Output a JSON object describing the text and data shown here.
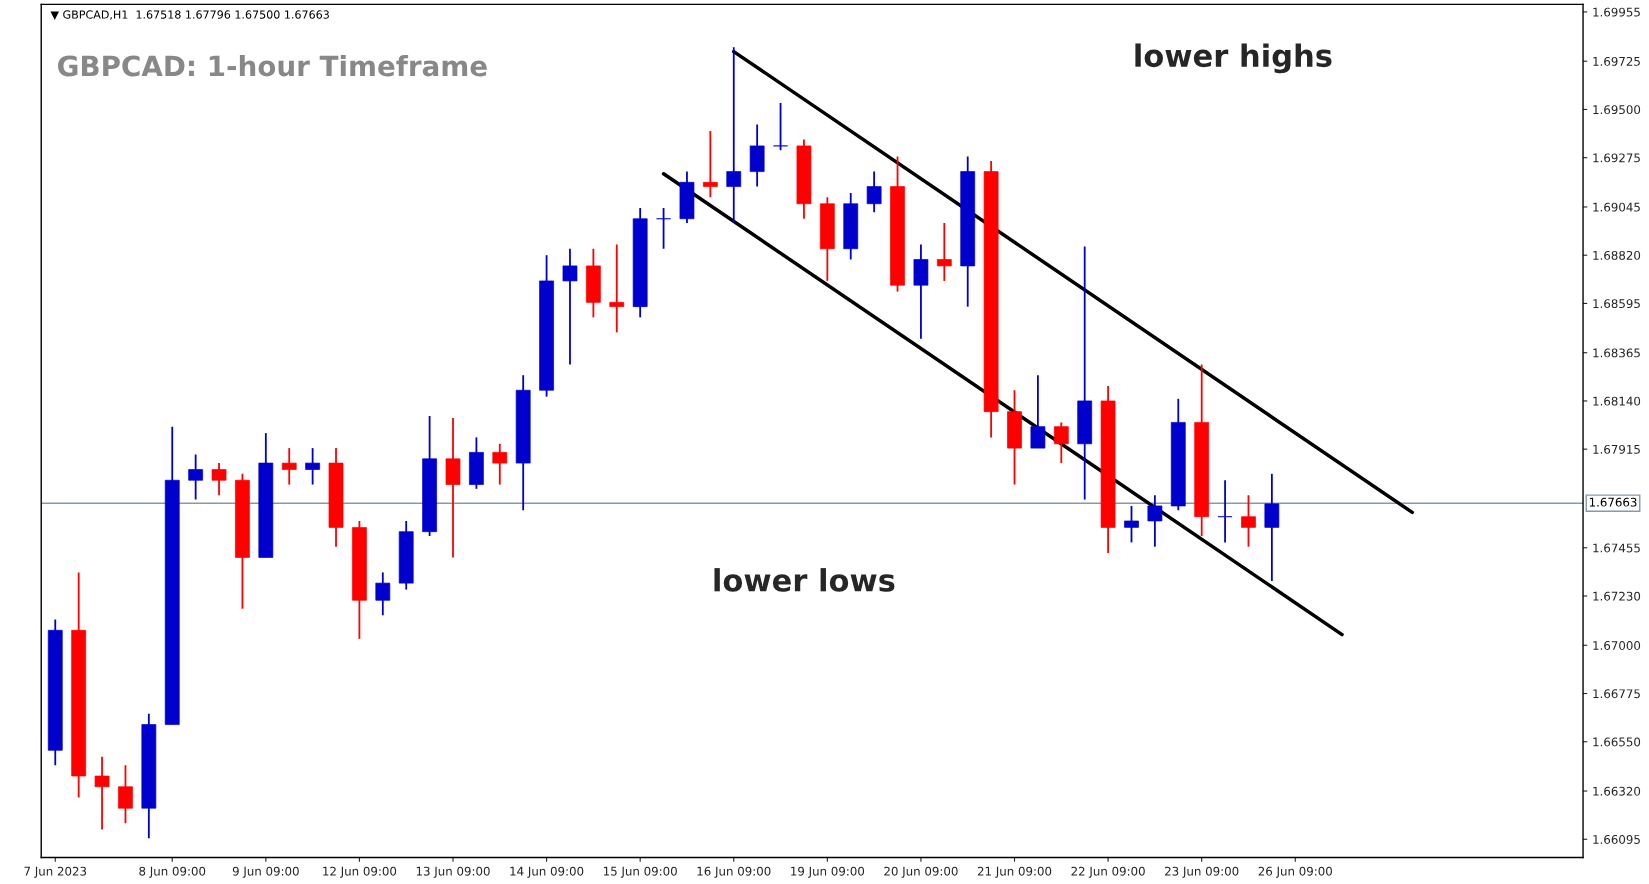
{
  "chart_data": {
    "type": "candlestick",
    "title": "GBPCAD: 1-hour Timeframe",
    "subtitle": "▼ GBPCAD,H1  1.67518 1.67796 1.67500 1.67663",
    "categories": [
      "7 Jun 2023",
      null,
      null,
      null,
      null,
      "8 Jun 09:00",
      null,
      null,
      null,
      "9 Jun 09:00",
      null,
      null,
      null,
      "12 Jun 09:00",
      null,
      null,
      null,
      "13 Jun 09:00",
      null,
      null,
      null,
      "14 Jun 09:00",
      null,
      null,
      null,
      "15 Jun 09:00",
      null,
      null,
      null,
      "16 Jun 09:00",
      null,
      null,
      null,
      "19 Jun 09:00",
      null,
      null,
      null,
      "20 Jun 09:00",
      null,
      null,
      null,
      "21 Jun 09:00",
      null,
      null,
      null,
      "22 Jun 09:00",
      null,
      null,
      null,
      "23 Jun 09:00",
      null,
      null,
      null,
      "26 Jun 09:00",
      null,
      null,
      null,
      null,
      null,
      null,
      null,
      null,
      null,
      null,
      null,
      null
    ],
    "ohlc": [
      [
        1.6651,
        1.6712,
        1.6644,
        1.6707
      ],
      [
        1.6707,
        1.6734,
        1.6629,
        1.6639
      ],
      [
        1.6639,
        1.6648,
        1.6614,
        1.6634
      ],
      [
        1.6634,
        1.6644,
        1.6617,
        1.6624
      ],
      [
        1.6624,
        1.6668,
        1.661,
        1.6663
      ],
      [
        1.6663,
        1.6802,
        1.6663,
        1.6777
      ],
      [
        1.6777,
        1.6789,
        1.6768,
        1.6782
      ],
      [
        1.6782,
        1.6785,
        1.677,
        1.6777
      ],
      [
        1.6777,
        1.678,
        1.6717,
        1.6741
      ],
      [
        1.6741,
        1.6799,
        1.6741,
        1.6785
      ],
      [
        1.6785,
        1.6792,
        1.6775,
        1.6782
      ],
      [
        1.6782,
        1.6792,
        1.6775,
        1.6785
      ],
      [
        1.6785,
        1.6792,
        1.6746,
        1.6755
      ],
      [
        1.6755,
        1.6758,
        1.6703,
        1.6721
      ],
      [
        1.6721,
        1.6734,
        1.6714,
        1.6729
      ],
      [
        1.6729,
        1.6758,
        1.6726,
        1.6753
      ],
      [
        1.6753,
        1.6807,
        1.6751,
        1.6787
      ],
      [
        1.6787,
        1.6806,
        1.6741,
        1.6775
      ],
      [
        1.6775,
        1.6797,
        1.6773,
        1.679
      ],
      [
        1.679,
        1.6794,
        1.6775,
        1.6785
      ],
      [
        1.6785,
        1.6826,
        1.6763,
        1.6819
      ],
      [
        1.6819,
        1.6882,
        1.6816,
        1.687
      ],
      [
        1.687,
        1.6885,
        1.6831,
        1.6877
      ],
      [
        1.6877,
        1.6885,
        1.6853,
        1.686
      ],
      [
        1.686,
        1.6887,
        1.6846,
        1.6858
      ],
      [
        1.6858,
        1.6904,
        1.6853,
        1.6899
      ],
      [
        1.6899,
        1.6904,
        1.6885,
        1.6899
      ],
      [
        1.6899,
        1.6921,
        1.6897,
        1.6916
      ],
      [
        1.6916,
        1.694,
        1.6909,
        1.6914
      ],
      [
        1.6914,
        1.6979,
        1.6897,
        1.6921
      ],
      [
        1.6921,
        1.6943,
        1.6914,
        1.6933
      ],
      [
        1.6933,
        1.6953,
        1.6931,
        1.6933
      ],
      [
        1.6933,
        1.6936,
        1.6899,
        1.6906
      ],
      [
        1.6906,
        1.6909,
        1.687,
        1.6885
      ],
      [
        1.6885,
        1.6911,
        1.688,
        1.6906
      ],
      [
        1.6906,
        1.6921,
        1.6902,
        1.6914
      ],
      [
        1.6914,
        1.6928,
        1.6865,
        1.6868
      ],
      [
        1.6868,
        1.6887,
        1.6843,
        1.688
      ],
      [
        1.688,
        1.6897,
        1.687,
        1.6877
      ],
      [
        1.6877,
        1.6928,
        1.6858,
        1.6921
      ],
      [
        1.6921,
        1.6926,
        1.6797,
        1.6809
      ],
      [
        1.6809,
        1.6819,
        1.6775,
        1.6792
      ],
      [
        1.6792,
        1.6826,
        1.6792,
        1.6802
      ],
      [
        1.6802,
        1.6804,
        1.6785,
        1.6794
      ],
      [
        1.6794,
        1.6886,
        1.6768,
        1.6814
      ],
      [
        1.6814,
        1.6821,
        1.6743,
        1.6755
      ],
      [
        1.6755,
        1.6765,
        1.6748,
        1.6758
      ],
      [
        1.6758,
        1.677,
        1.6746,
        1.6765
      ],
      [
        1.6765,
        1.6815,
        1.6763,
        1.6804
      ],
      [
        1.6804,
        1.6831,
        1.6751,
        1.676
      ],
      [
        1.676,
        1.6777,
        1.6748,
        1.676
      ],
      [
        1.676,
        1.677,
        1.6746,
        1.6755
      ],
      [
        1.6755,
        1.678,
        1.673,
        1.6766
      ],
      null,
      null,
      null,
      null,
      null,
      null,
      null,
      null,
      null,
      null,
      null,
      null,
      null
    ],
    "colors": [
      "#0000cc",
      "#ff0000",
      "#ff0000",
      "#ff0000",
      "#0000cc",
      "#0000cc",
      "#0000cc",
      "#ff0000",
      "#ff0000",
      "#0000cc",
      "#ff0000",
      "#0000cc",
      "#ff0000",
      "#ff0000",
      "#0000cc",
      "#0000cc",
      "#0000cc",
      "#ff0000",
      "#0000cc",
      "#ff0000",
      "#0000cc",
      "#0000cc",
      "#0000cc",
      "#ff0000",
      "#ff0000",
      "#0000cc",
      "#0000cc",
      "#0000cc",
      "#ff0000",
      "#0000cc",
      "#0000cc",
      "#0000cc",
      "#ff0000",
      "#ff0000",
      "#0000cc",
      "#0000cc",
      "#ff0000",
      "#0000cc",
      "#ff0000",
      "#0000cc",
      "#ff0000",
      "#ff0000",
      "#0000cc",
      "#ff0000",
      "#0000cc",
      "#ff0000",
      "#0000cc",
      "#0000cc",
      "#0000cc",
      "#ff0000",
      "#0000cc",
      "#ff0000",
      "#0000cc",
      null,
      null,
      null,
      null,
      null,
      null,
      null,
      null,
      null,
      null,
      null,
      null,
      null
    ],
    "series": [
      {
        "type": "line",
        "color": "#000000",
        "values": [
          null,
          null,
          null,
          null,
          null,
          null,
          null,
          null,
          null,
          null,
          null,
          null,
          null,
          null,
          null,
          null,
          null,
          null,
          null,
          null,
          null,
          null,
          null,
          null,
          null,
          null,
          null,
          null,
          null,
          1.6977,
          null,
          null,
          null,
          null,
          null,
          null,
          null,
          null,
          null,
          null,
          null,
          null,
          null,
          null,
          null,
          null,
          null,
          null,
          null,
          null,
          null,
          null,
          null,
          null,
          null,
          null,
          null,
          null,
          1.6762,
          null,
          null,
          null,
          null,
          null,
          null,
          null
        ]
      },
      {
        "type": "line",
        "color": "#000000",
        "values": [
          null,
          null,
          null,
          null,
          null,
          null,
          null,
          null,
          null,
          null,
          null,
          null,
          null,
          null,
          null,
          null,
          null,
          null,
          null,
          null,
          null,
          null,
          null,
          null,
          null,
          null,
          1.692,
          null,
          null,
          null,
          null,
          null,
          null,
          null,
          null,
          null,
          null,
          null,
          null,
          null,
          null,
          null,
          null,
          null,
          null,
          null,
          null,
          null,
          null,
          null,
          null,
          null,
          null,
          null,
          null,
          1.6705,
          null,
          null,
          null,
          null,
          null,
          null,
          null,
          null,
          null,
          null
        ]
      }
    ],
    "ylim": [
      1.6601,
      1.6999
    ],
    "yticks": [
      1.69955,
      1.69725,
      {
        "value": 1.695,
        "label": "1.69500"
      },
      1.69275,
      1.69045,
      {
        "value": 1.6882,
        "label": "1.68820"
      },
      1.68595,
      1.68365,
      {
        "value": 1.6814,
        "label": "1.68140"
      },
      1.67915,
      1.67455,
      {
        "value": 1.6723,
        "label": "1.67230"
      },
      {
        "value": 1.67,
        "label": "1.67000"
      },
      1.66775,
      {
        "value": 1.6655,
        "label": "1.66550"
      },
      {
        "value": 1.6632,
        "label": "1.66320"
      },
      1.66095
    ],
    "ref_lines": [
      {
        "axis": "y",
        "value": 1.67663,
        "label": "1.67663",
        "color": "#8899aa"
      }
    ],
    "annotations": [
      "lower highs",
      "lower lows"
    ]
  }
}
